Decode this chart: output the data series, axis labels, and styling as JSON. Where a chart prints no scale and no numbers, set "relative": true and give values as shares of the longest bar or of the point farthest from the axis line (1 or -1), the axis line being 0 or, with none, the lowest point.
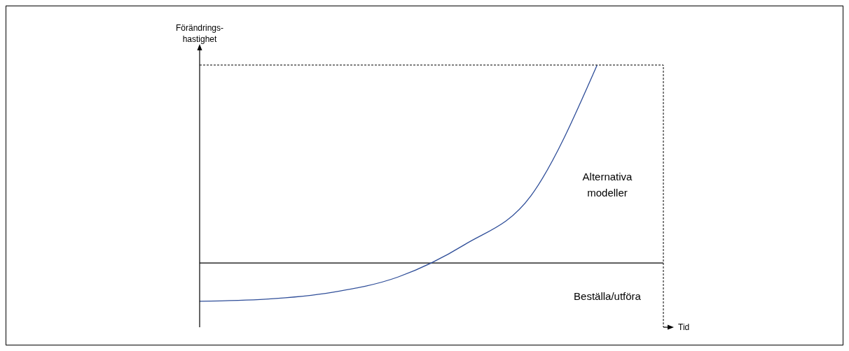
{
  "chart_data": {
    "type": "line",
    "relative": true,
    "xlabel": "Tid",
    "ylabel": "Förändrings-hastighet",
    "categories": [
      null,
      null,
      null,
      null,
      null,
      null,
      null,
      null
    ],
    "series": [
      {
        "color": "#2f4e99",
        "values": [
          0.099,
          0.107,
          0.133,
          0.192,
          0.315,
          0.501,
          1,
          null
        ]
      }
    ],
    "ref_lines": [
      {
        "axis": "y",
        "value": 0.245,
        "color": "#000000"
      }
    ],
    "annotations": [
      "Alternativa modeller",
      "Beställa/utföra"
    ],
    "grid": false,
    "legend": false,
    "marker": "none",
    "line_style": "solid"
  }
}
